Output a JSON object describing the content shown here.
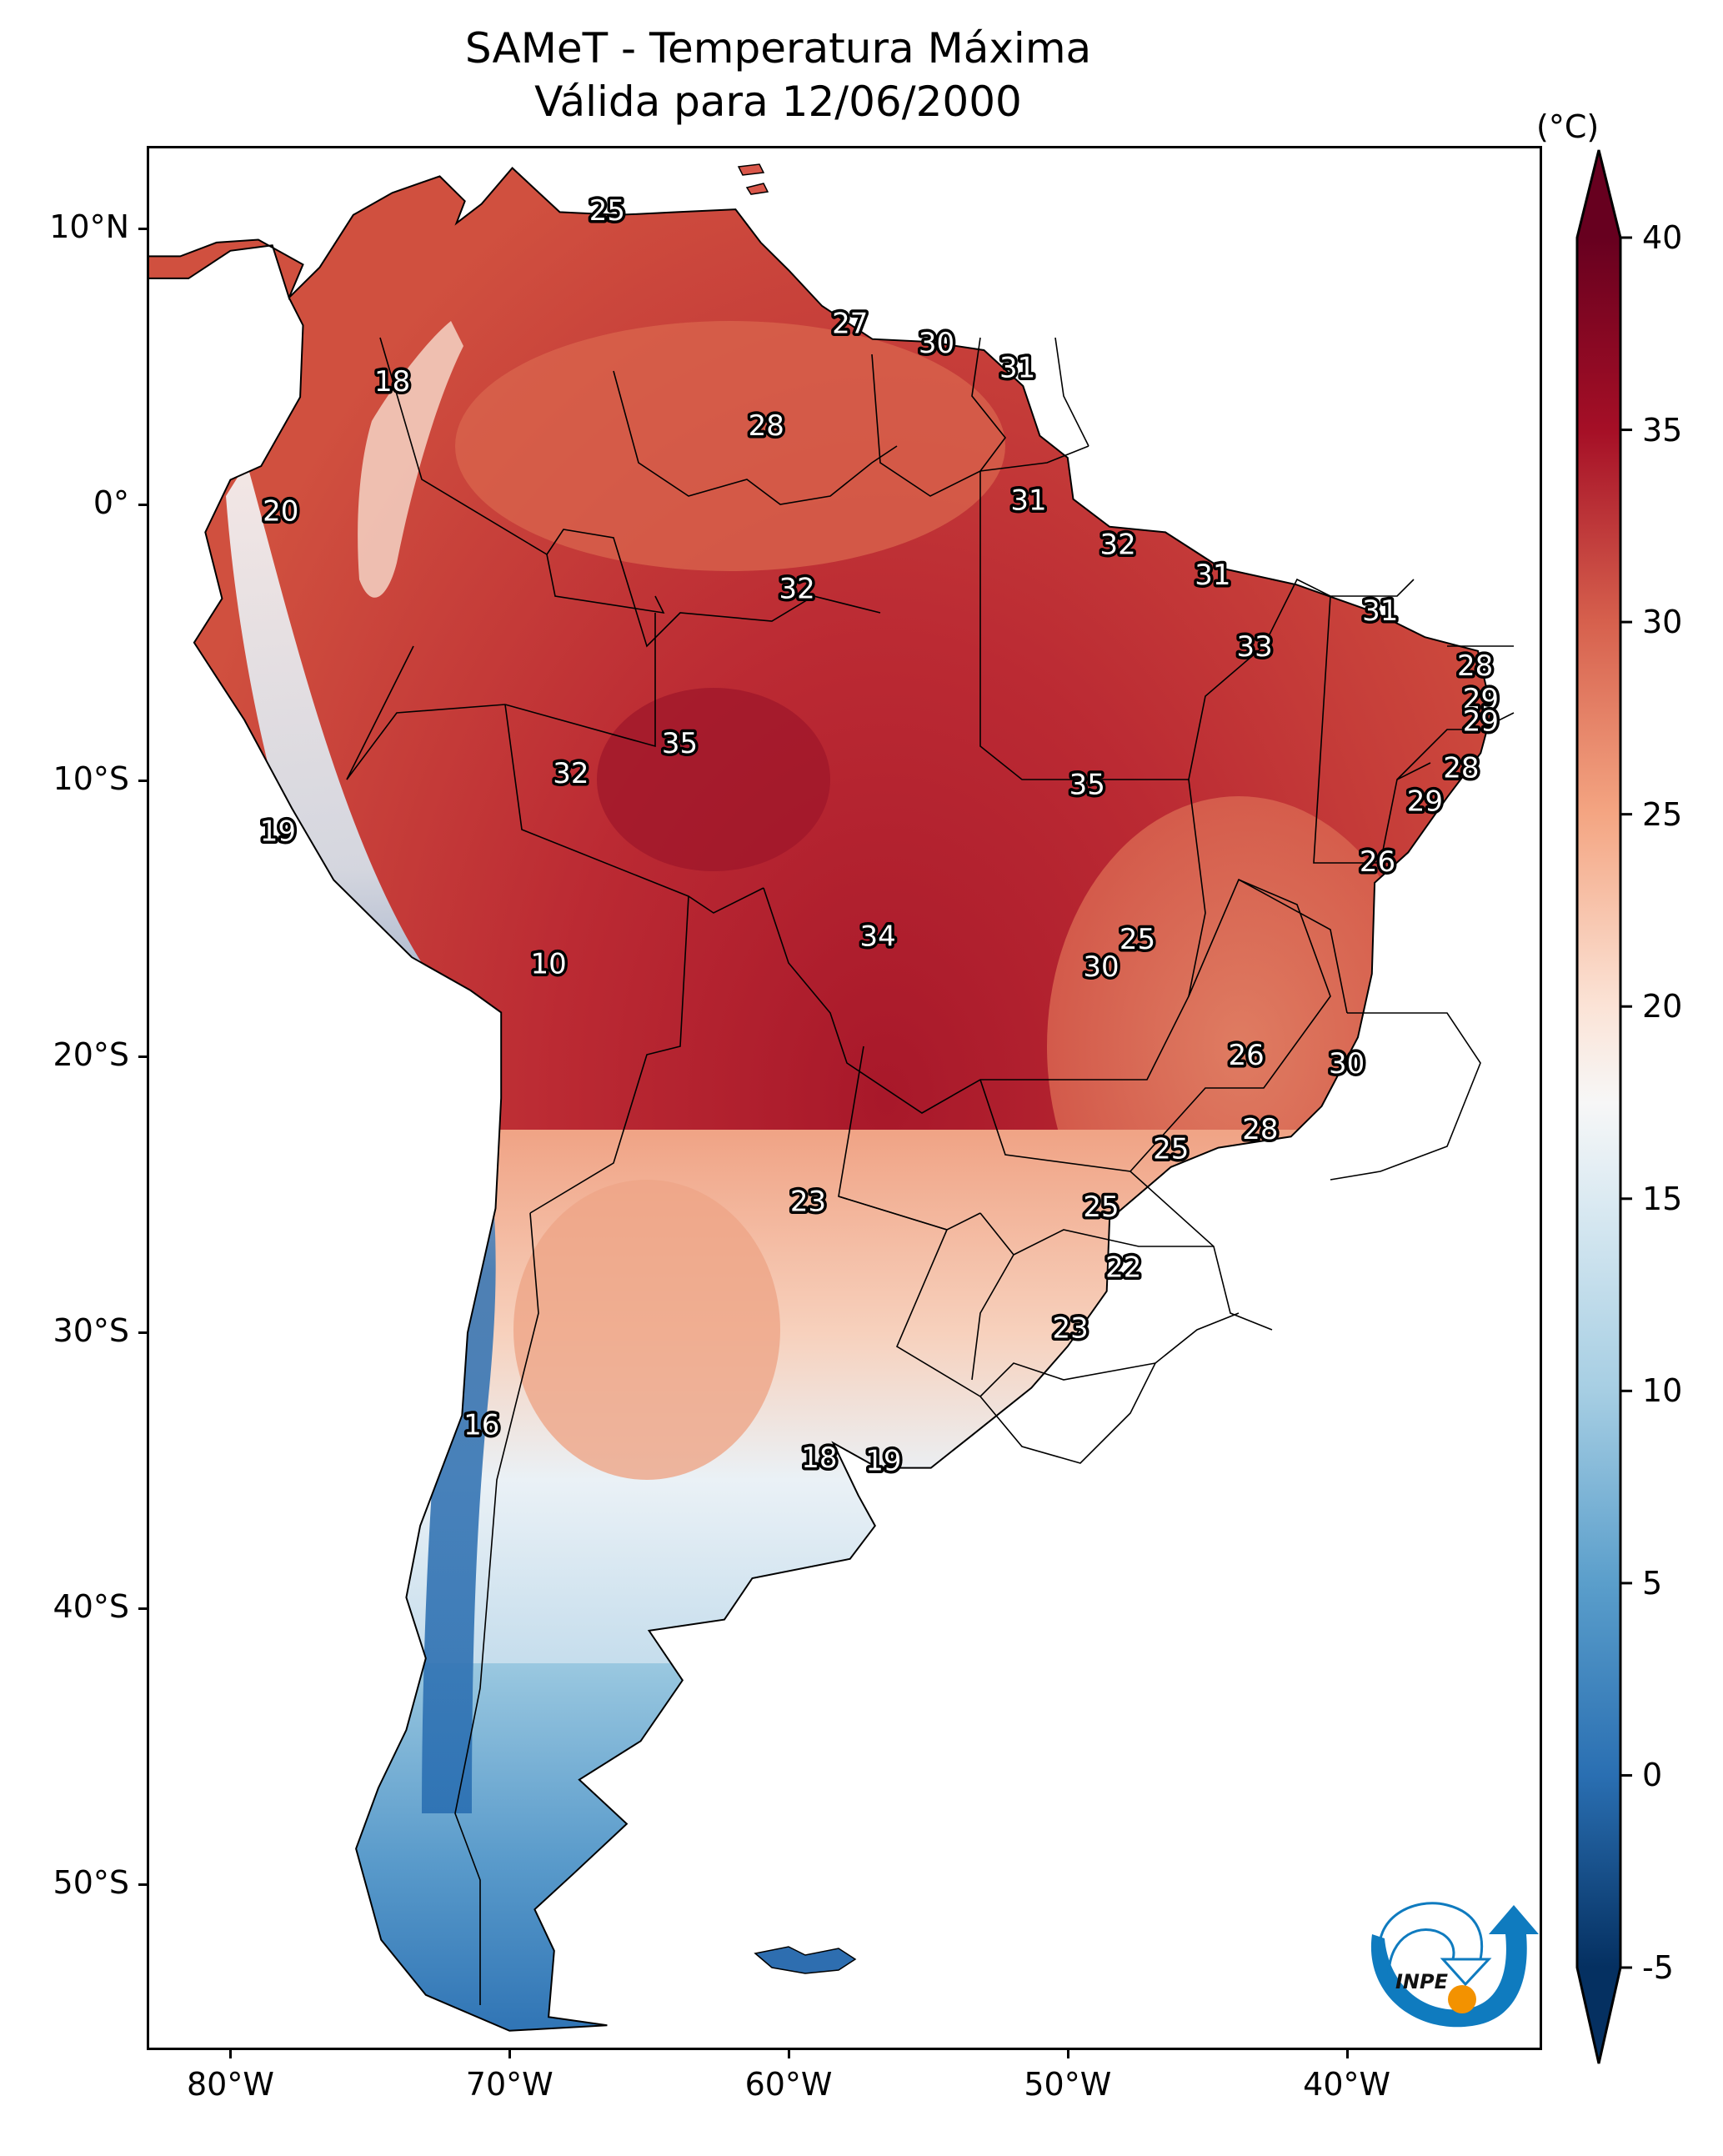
{
  "title": {
    "line1": "SAMeT - Temperatura Máxima",
    "line2": "Válida para 12/06/2000"
  },
  "chart_data": {
    "type": "heatmap",
    "subtype": "geographic filled contour map",
    "title": "SAMeT - Temperatura Máxima Válida para 12/06/2000",
    "variable": "Maximum temperature",
    "units": "°C",
    "region": "South America",
    "lon_range": [
      -83,
      -33
    ],
    "lat_range": [
      -56,
      13
    ],
    "x_ticks": [
      "80°W",
      "70°W",
      "60°W",
      "50°W",
      "40°W"
    ],
    "x_tick_values": [
      -80,
      -70,
      -60,
      -50,
      -40
    ],
    "y_ticks": [
      "10°N",
      "0°",
      "10°S",
      "20°S",
      "30°S",
      "40°S",
      "50°S"
    ],
    "y_tick_values": [
      10,
      0,
      -10,
      -20,
      -30,
      -40,
      -50
    ],
    "colorbar": {
      "label": "(°C)",
      "min": -5,
      "max": 40,
      "ticks": [
        "40",
        "35",
        "30",
        "25",
        "20",
        "15",
        "10",
        "5",
        "0",
        "-5"
      ],
      "tick_values": [
        40,
        35,
        30,
        25,
        20,
        15,
        10,
        5,
        0,
        -5
      ],
      "extend": "both",
      "colormap": "RdBu_r",
      "placement": "right"
    },
    "contour_labels": [
      {
        "value": 25,
        "lon": -66.5,
        "lat": 10.6
      },
      {
        "value": 18,
        "lon": -74.2,
        "lat": 4.4
      },
      {
        "value": 27,
        "lon": -57.8,
        "lat": 6.5
      },
      {
        "value": 30,
        "lon": -54.7,
        "lat": 5.8
      },
      {
        "value": 31,
        "lon": -51.8,
        "lat": 4.9
      },
      {
        "value": 28,
        "lon": -60.8,
        "lat": 2.8
      },
      {
        "value": 20,
        "lon": -78.2,
        "lat": -0.3
      },
      {
        "value": 31,
        "lon": -51.4,
        "lat": 0.1
      },
      {
        "value": 32,
        "lon": -48.2,
        "lat": -1.5
      },
      {
        "value": 31,
        "lon": -44.8,
        "lat": -2.6
      },
      {
        "value": 32,
        "lon": -59.7,
        "lat": -3.1
      },
      {
        "value": 31,
        "lon": -38.8,
        "lat": -3.9
      },
      {
        "value": 33,
        "lon": -43.3,
        "lat": -5.2
      },
      {
        "value": 28,
        "lon": -35.4,
        "lat": -5.9
      },
      {
        "value": 29,
        "lon": -35.2,
        "lat": -7.1
      },
      {
        "value": 29,
        "lon": -35.2,
        "lat": -7.9
      },
      {
        "value": 35,
        "lon": -63.9,
        "lat": -8.7
      },
      {
        "value": 28,
        "lon": -35.9,
        "lat": -9.6
      },
      {
        "value": 32,
        "lon": -67.8,
        "lat": -9.8
      },
      {
        "value": 35,
        "lon": -49.3,
        "lat": -10.2
      },
      {
        "value": 29,
        "lon": -37.2,
        "lat": -10.8
      },
      {
        "value": 19,
        "lon": -78.3,
        "lat": -11.9
      },
      {
        "value": 26,
        "lon": -38.9,
        "lat": -13.0
      },
      {
        "value": 34,
        "lon": -56.8,
        "lat": -15.7
      },
      {
        "value": 25,
        "lon": -47.5,
        "lat": -15.8
      },
      {
        "value": 30,
        "lon": -48.8,
        "lat": -16.8
      },
      {
        "value": 10,
        "lon": -68.6,
        "lat": -16.7
      },
      {
        "value": 26,
        "lon": -43.6,
        "lat": -20.0
      },
      {
        "value": 30,
        "lon": -40.0,
        "lat": -20.3
      },
      {
        "value": 28,
        "lon": -43.1,
        "lat": -22.7
      },
      {
        "value": 25,
        "lon": -46.3,
        "lat": -23.4
      },
      {
        "value": 23,
        "lon": -59.3,
        "lat": -25.3
      },
      {
        "value": 25,
        "lon": -48.8,
        "lat": -25.5
      },
      {
        "value": 22,
        "lon": -48.0,
        "lat": -27.7
      },
      {
        "value": 23,
        "lon": -49.9,
        "lat": -29.9
      },
      {
        "value": 16,
        "lon": -71.0,
        "lat": -33.4
      },
      {
        "value": 18,
        "lon": -58.9,
        "lat": -34.6
      },
      {
        "value": 19,
        "lon": -56.6,
        "lat": -34.7
      }
    ],
    "qualitative_pattern": {
      "hottest": "Central Brazil / Amazon (~34-37°C)",
      "coldest": "Andes cordillera and Patagonia (~-3 to 10°C)",
      "south_brazil_uruguay": "~18-25°C"
    }
  },
  "logo": {
    "text": "INPE",
    "colors": {
      "arrow": "#0f7bbf",
      "sun": "#f39200",
      "text": "#111111"
    }
  }
}
